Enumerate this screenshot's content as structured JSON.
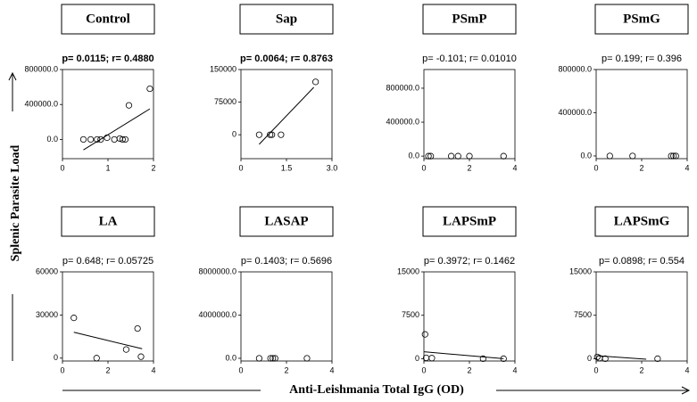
{
  "y_label": "Splenic Parasite Load",
  "x_label": "Anti-Leishmania Total IgG (OD)",
  "chart_data": [
    {
      "type": "scatter",
      "title": "Control",
      "annotation": "p= 0.0115; r= 0.4880",
      "annotation_bold": true,
      "x": [
        0.46,
        0.62,
        0.76,
        0.84,
        0.98,
        1.14,
        1.26,
        1.32,
        1.38,
        1.46,
        1.92
      ],
      "y": [
        0,
        0,
        0,
        0,
        20000,
        0,
        10000,
        0,
        0,
        390000,
        580000
      ],
      "fit": {
        "x": [
          0.46,
          1.92
        ],
        "y": [
          -120000,
          350000
        ]
      },
      "xlim": [
        0,
        2
      ],
      "ylim": [
        -220000,
        800000
      ],
      "xticks": [
        0,
        1,
        2
      ],
      "yticks": [
        {
          "value": 0,
          "label": "0.0"
        },
        {
          "value": 400000,
          "label": "400000.0"
        },
        {
          "value": 800000,
          "label": "800000.0"
        }
      ]
    },
    {
      "type": "scatter",
      "title": "Sap",
      "annotation": "p= 0.0064; r= 0.8763",
      "annotation_bold": true,
      "x": [
        0.6,
        0.96,
        1.02,
        1.32,
        2.46
      ],
      "y": [
        0,
        0,
        0,
        0,
        121600
      ],
      "fit": {
        "x": [
          0.6,
          2.4
        ],
        "y": [
          -22000,
          109000
        ]
      },
      "xlim": [
        0,
        3
      ],
      "ylim": [
        -55000,
        150000
      ],
      "xticks": [
        0,
        1.5,
        {
          "value": 3,
          "label": "3.0"
        }
      ],
      "yticks": [
        0,
        75000,
        150000
      ]
    },
    {
      "type": "scatter",
      "title": "PSmP",
      "annotation": "p= -0.101; r= 0.01010",
      "annotation_bold": false,
      "x": [
        0.2,
        0.3,
        1.2,
        1.5,
        2.0,
        3.5
      ],
      "y": [
        0,
        0,
        0,
        0,
        0,
        0
      ],
      "xlim": [
        0,
        4
      ],
      "ylim": [
        -30000,
        1020000
      ],
      "xticks": [
        0,
        2,
        4
      ],
      "yticks": [
        {
          "value": 0,
          "label": "0.0"
        },
        {
          "value": 400000,
          "label": "400000.0"
        },
        {
          "value": 800000,
          "label": "800000.0"
        }
      ]
    },
    {
      "type": "scatter",
      "title": "PSmG",
      "annotation": "p= 0.199; r= 0.396",
      "annotation_bold": false,
      "x": [
        0.6,
        1.6,
        3.3,
        3.4,
        3.5
      ],
      "y": [
        0,
        0,
        0,
        0,
        0
      ],
      "xlim": [
        0,
        4
      ],
      "ylim": [
        -25000,
        800000
      ],
      "xticks": [
        0,
        2,
        4
      ],
      "yticks": [
        {
          "value": 0,
          "label": "0.0"
        },
        {
          "value": 400000,
          "label": "400000.0"
        },
        {
          "value": 800000,
          "label": "800000.0"
        }
      ]
    },
    {
      "type": "scatter",
      "title": "LA",
      "annotation": "p= 0.648; r= 0.05725",
      "annotation_bold": false,
      "x": [
        0.5,
        1.5,
        2.8,
        3.3,
        3.45
      ],
      "y": [
        28000,
        0,
        6000,
        20600,
        1000
      ],
      "fit": {
        "x": [
          0.5,
          3.5
        ],
        "y": [
          18000,
          6500
        ]
      },
      "xlim": [
        0,
        4
      ],
      "ylim": [
        -2000,
        60000
      ],
      "xticks": [
        0,
        2,
        4
      ],
      "yticks": [
        0,
        30000,
        60000
      ]
    },
    {
      "type": "scatter",
      "title": "LASAP",
      "annotation": "p= 0.1403; r= 0.5696",
      "annotation_bold": false,
      "x": [
        0.8,
        1.3,
        1.4,
        1.5,
        2.9
      ],
      "y": [
        0,
        0,
        0,
        0,
        0
      ],
      "xlim": [
        0,
        4
      ],
      "ylim": [
        -250000,
        8000000
      ],
      "xticks": [
        0,
        2,
        4
      ],
      "yticks": [
        {
          "value": 0,
          "label": "0.0"
        },
        {
          "value": 4000000,
          "label": "4000000.0"
        },
        {
          "value": 8000000,
          "label": "8000000.0"
        }
      ]
    },
    {
      "type": "scatter",
      "title": "LAPSmP",
      "annotation": "p= 0.3972; r= 0.1462",
      "annotation_bold": false,
      "x": [
        0.05,
        0.1,
        0.35,
        2.6,
        3.5
      ],
      "y": [
        4200,
        150,
        100,
        0,
        0
      ],
      "fit": {
        "x": [
          0,
          3.5
        ],
        "y": [
          1200,
          0
        ]
      },
      "xlim": [
        0,
        4
      ],
      "ylim": [
        -400,
        15000
      ],
      "xticks": [
        0,
        2,
        4
      ],
      "yticks": [
        0,
        7500,
        15000
      ]
    },
    {
      "type": "scatter",
      "title": "LAPSmG",
      "annotation": "p= 0.0898; r= 0.554",
      "annotation_bold": false,
      "x": [
        0.05,
        0.15,
        0.4,
        2.7
      ],
      "y": [
        300,
        100,
        0,
        0
      ],
      "fit": {
        "x": [
          0.05,
          2.2
        ],
        "y": [
          500,
          -100
        ]
      },
      "xlim": [
        0,
        4
      ],
      "ylim": [
        -400,
        15000
      ],
      "xticks": [
        0,
        2,
        4
      ],
      "yticks": [
        0,
        7500,
        15000
      ]
    }
  ]
}
